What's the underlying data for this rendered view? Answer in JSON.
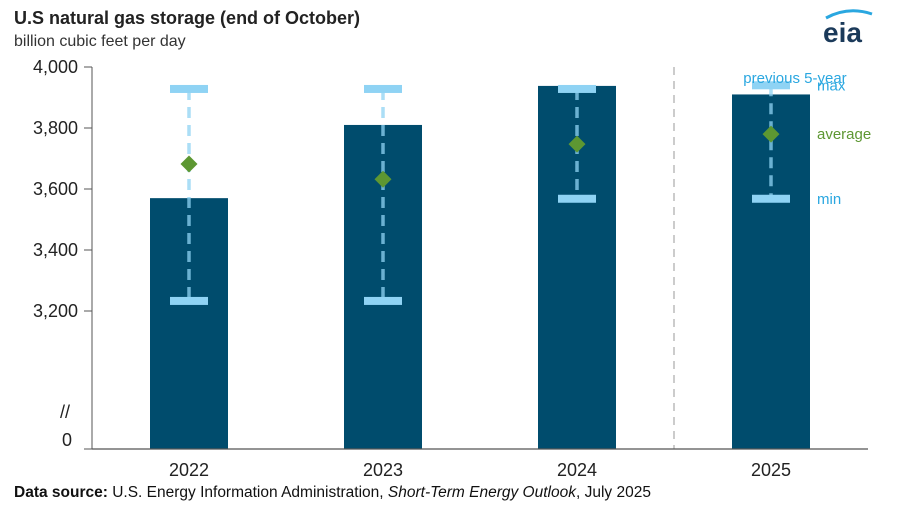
{
  "colors": {
    "bar": "#004c6d",
    "range": "#8fd3f4",
    "average": "#5d9732",
    "legend_blue": "#2aa7e0",
    "axis": "#555555",
    "divider": "#bbbbbb",
    "logo": "#1b3a5a",
    "logo_swoosh": "#2aa7e0"
  },
  "logo": {
    "text": "eia"
  },
  "footer": {
    "label": "Data source:",
    "text_before": " U.S. Energy Information Administration, ",
    "italic": "Short-Term Energy Outlook",
    "text_after": ", July 2025"
  },
  "chart_data": {
    "type": "bar",
    "title": "U.S natural gas storage (end of October)",
    "subtitle": "billion cubic feet per day",
    "categories": [
      "2022",
      "2023",
      "2024",
      "2025"
    ],
    "values": [
      3570,
      3810,
      3938,
      3910
    ],
    "range": {
      "max": [
        3928,
        3928,
        3928,
        3940
      ],
      "average": [
        3682,
        3632,
        3747,
        3780
      ],
      "min": [
        3233,
        3233,
        3568,
        3568
      ]
    },
    "yticks": [
      {
        "value": 4000,
        "label": "4,000"
      },
      {
        "value": 3800,
        "label": "3,800"
      },
      {
        "value": 3600,
        "label": "3,600"
      },
      {
        "value": 3400,
        "label": "3,400"
      },
      {
        "value": 3200,
        "label": "3,200"
      }
    ],
    "ylim": [
      3000,
      4000
    ],
    "axis_break": {
      "symbol": "//",
      "zero_label": "0"
    },
    "legend": {
      "header": "previous 5-year",
      "max": "max",
      "average": "average",
      "min": "min"
    },
    "grid": false
  }
}
